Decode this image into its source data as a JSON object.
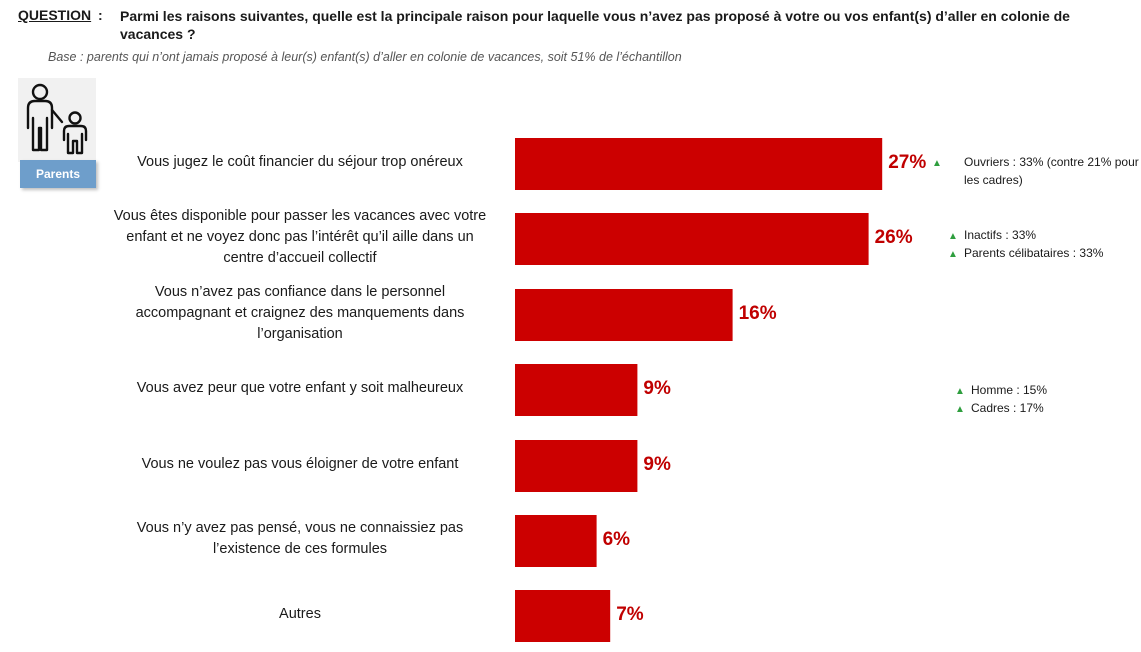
{
  "question": {
    "label": "QUESTION",
    "colon": ":",
    "text": "Parmi les raisons suivantes, quelle est la principale raison pour laquelle vous n’avez pas proposé à votre ou vos enfant(s) d’aller en colonie de vacances ?",
    "base": "Base : parents qui n’ont jamais proposé à leur(s) enfant(s) d’aller en colonie de vacances, soit 51% de l’échantillon"
  },
  "badge": {
    "label": "Parents",
    "icon": "parent-child-icon"
  },
  "colors": {
    "bar": "#cc0000",
    "value": "#c00000",
    "triangle": "#2e9e3e",
    "badge": "#6e9ecb"
  },
  "chart_data": {
    "type": "bar",
    "orientation": "horizontal",
    "categories": [
      "Vous jugez le coût financier du séjour trop onéreux",
      "Vous êtes disponible pour passer les vacances avec votre enfant et ne voyez donc pas l’intérêt qu’il aille dans un centre d’accueil collectif",
      "Vous n’avez pas confiance dans le personnel accompagnant et craignez des manquements dans l’organisation",
      "Vous avez peur que votre enfant y soit malheureux",
      "Vous ne voulez pas vous éloigner de votre enfant",
      "Vous n’y avez pas pensé, vous ne connaissiez pas l’existence de ces formules",
      "Autres"
    ],
    "values": [
      27,
      26,
      16,
      9,
      9,
      6,
      7
    ],
    "value_labels": [
      "27%",
      "26%",
      "16%",
      "9%",
      "9%",
      "6%",
      "7%"
    ],
    "unit": "%",
    "annotations": [
      [
        "Ouvriers : 33% (contre 21% pour les cadres)"
      ],
      [
        "Inactifs :  33%",
        "Parents célibataires : 33%"
      ],
      [],
      [
        "Homme : 15%",
        "Cadres : 17%"
      ],
      [],
      [],
      []
    ]
  }
}
